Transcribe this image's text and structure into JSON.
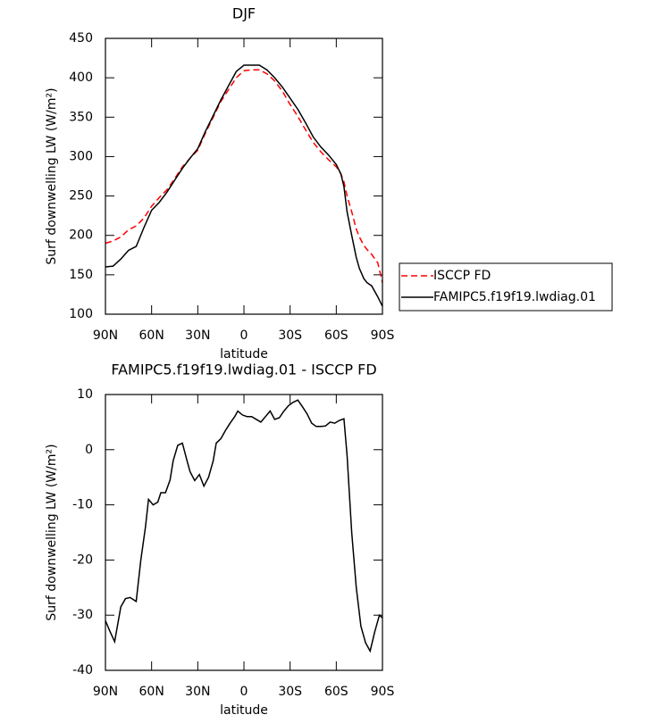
{
  "chart_data": [
    {
      "type": "line",
      "title": "DJF",
      "xlabel": "latitude",
      "ylabel": "Surf downwelling LW (W/m²)",
      "xlim": [
        -90,
        90
      ],
      "ylim": [
        100,
        450
      ],
      "xticks": [
        {
          "value": -90,
          "label": "90N"
        },
        {
          "value": -60,
          "label": "60N"
        },
        {
          "value": -30,
          "label": "30N"
        },
        0,
        {
          "value": 30,
          "label": "30S"
        },
        {
          "value": 60,
          "label": "60S"
        },
        {
          "value": 90,
          "label": "90S"
        }
      ],
      "yticks": [
        100,
        150,
        200,
        250,
        300,
        350,
        400,
        450
      ],
      "legend": "outside right",
      "x": [
        -90,
        -85,
        -80,
        -75,
        -70,
        -65,
        -60,
        -55,
        -50,
        -45,
        -40,
        -35,
        -30,
        -25,
        -20,
        -15,
        -10,
        -5,
        0,
        5,
        10,
        15,
        20,
        25,
        30,
        35,
        40,
        45,
        50,
        55,
        60,
        63,
        65,
        67,
        70,
        73,
        75,
        78,
        80,
        83,
        87,
        90
      ],
      "series": [
        {
          "name": "ISCCP FD",
          "color": "#ff0000",
          "dash": true,
          "values": [
            190,
            193,
            198,
            207,
            212,
            222,
            237,
            248,
            258,
            272,
            287,
            298,
            308,
            330,
            350,
            370,
            385,
            400,
            409,
            410,
            410,
            405,
            396,
            383,
            366,
            351,
            334,
            318,
            306,
            296,
            287,
            278,
            268,
            250,
            230,
            208,
            198,
            187,
            182,
            176,
            165,
            140
          ]
        },
        {
          "name": "FAMIPC5.f19f19.lwdiag.01",
          "color": "#000000",
          "dash": false,
          "values": [
            160,
            161,
            170,
            181,
            186,
            210,
            232,
            242,
            255,
            270,
            285,
            298,
            310,
            332,
            352,
            372,
            390,
            408,
            416,
            416,
            416,
            410,
            400,
            388,
            374,
            360,
            343,
            325,
            312,
            302,
            290,
            278,
            262,
            230,
            200,
            172,
            158,
            145,
            140,
            136,
            122,
            110
          ]
        }
      ]
    },
    {
      "type": "line",
      "title": "FAMIPC5.f19f19.lwdiag.01 - ISCCP FD",
      "xlabel": "latitude",
      "ylabel": "Surf downwelling LW (W/m²)",
      "xlim": [
        -90,
        90
      ],
      "ylim": [
        -40,
        10
      ],
      "xticks": [
        {
          "value": -90,
          "label": "90N"
        },
        {
          "value": -60,
          "label": "60N"
        },
        {
          "value": -30,
          "label": "30N"
        },
        0,
        {
          "value": 30,
          "label": "30S"
        },
        {
          "value": 60,
          "label": "60S"
        },
        {
          "value": 90,
          "label": "90S"
        }
      ],
      "yticks": [
        -40,
        -30,
        -20,
        -10,
        0,
        10
      ],
      "x": [
        -90,
        -87,
        -84,
        -80,
        -77,
        -74,
        -70,
        -67,
        -64,
        -62,
        -59,
        -56,
        -54,
        -51,
        -48,
        -46,
        -43,
        -40,
        -37,
        -35,
        -32,
        -29,
        -26,
        -23,
        -20,
        -18,
        -15,
        -12,
        -9,
        -6,
        -4,
        -1,
        2,
        5,
        8,
        11,
        14,
        17,
        20,
        23,
        26,
        29,
        32,
        35,
        38,
        41,
        44,
        47,
        50,
        53,
        56,
        59,
        62,
        65,
        67,
        70,
        73,
        76,
        79,
        82,
        85,
        88,
        90
      ],
      "series": [
        {
          "color": "#000000",
          "dash": false,
          "values": [
            -31,
            -33,
            -34.8,
            -28.5,
            -27,
            -26.8,
            -27.5,
            -20,
            -14,
            -9,
            -10,
            -9.5,
            -7.8,
            -7.8,
            -5.5,
            -2,
            0.8,
            1.2,
            -2,
            -4,
            -5.6,
            -4.5,
            -6.6,
            -5,
            -2,
            1.2,
            2,
            3.5,
            4.8,
            6,
            7,
            6.3,
            6,
            6,
            5.5,
            5,
            6,
            7,
            5.5,
            5.8,
            7,
            8,
            8.6,
            9,
            7.8,
            6.5,
            4.8,
            4.2,
            4.2,
            4.3,
            5,
            4.8,
            5.3,
            5.6,
            -1,
            -15,
            -25,
            -32,
            -35,
            -36.5,
            -33,
            -30,
            -30.5
          ]
        }
      ]
    }
  ]
}
